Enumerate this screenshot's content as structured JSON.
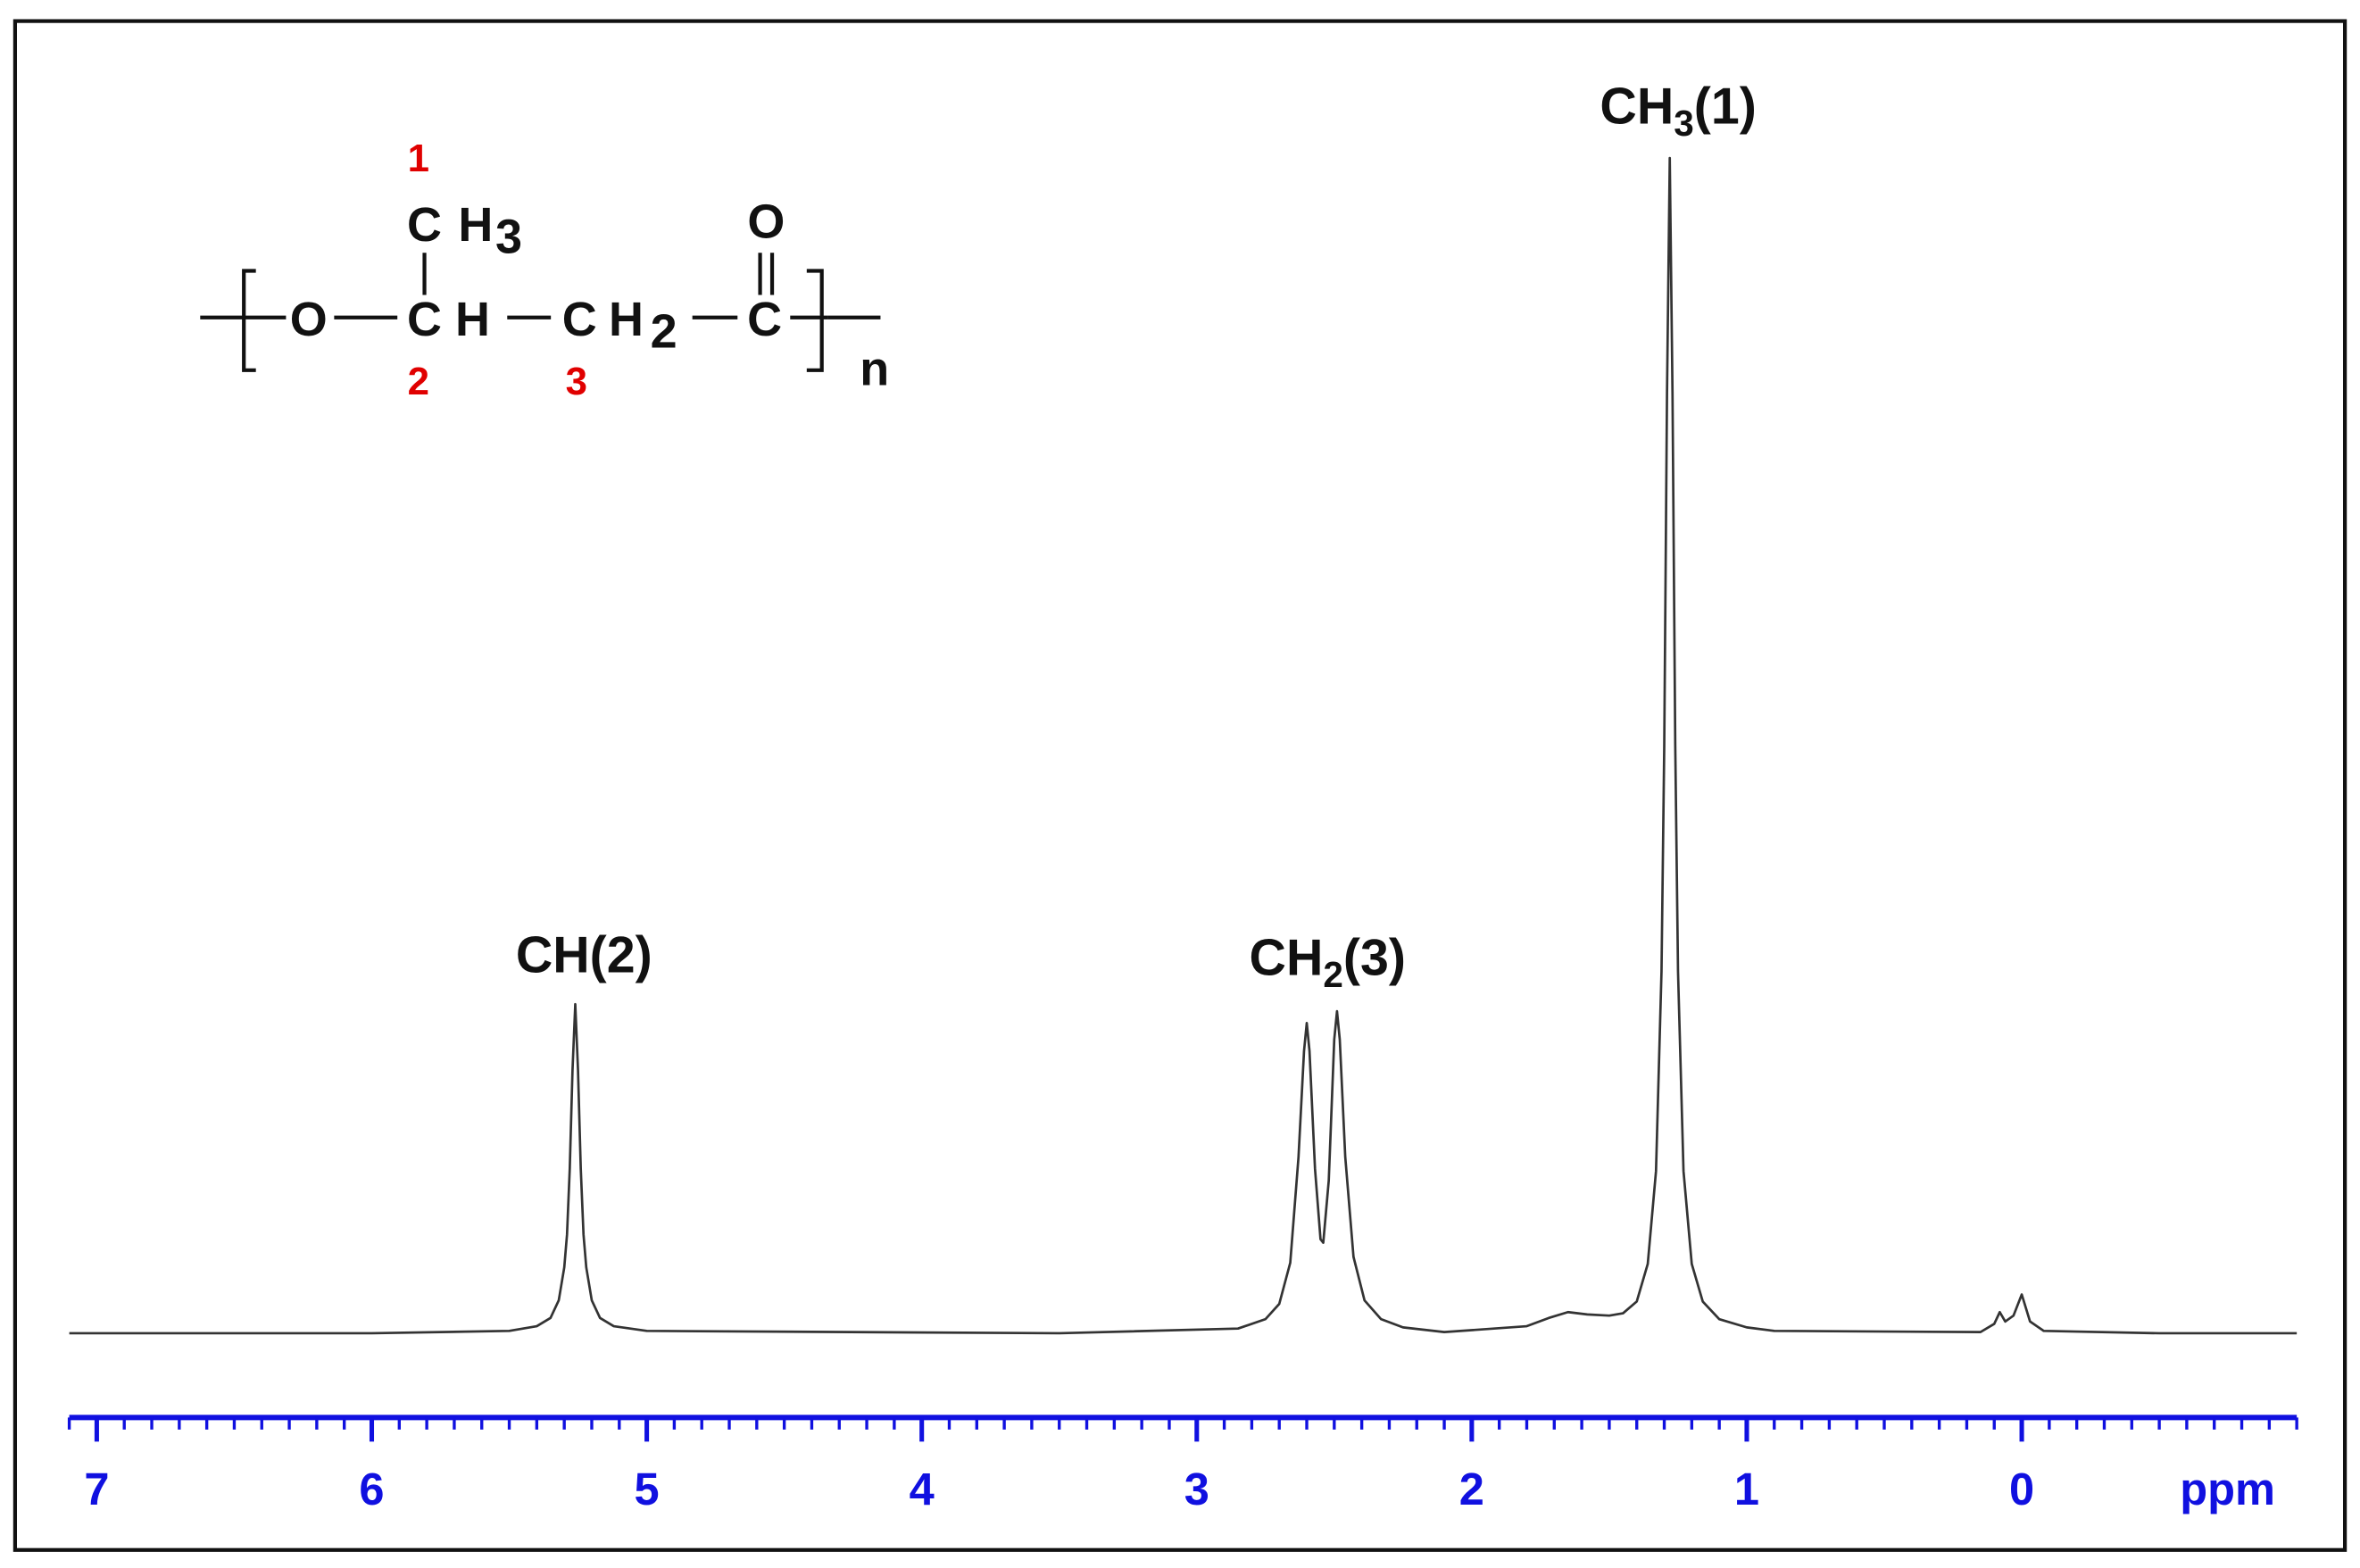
{
  "chart_data": {
    "type": "line",
    "x_label": "ppm",
    "color": "#333333",
    "axis_color": "#1010e0",
    "xlim": [
      7.1,
      -1.0
    ],
    "ylim": [
      0,
      100
    ],
    "xticks": [
      7,
      6,
      5,
      4,
      3,
      2,
      1,
      0
    ],
    "x": [
      7.1,
      6.0,
      5.5,
      5.4,
      5.35,
      5.32,
      5.3,
      5.29,
      5.28,
      5.27,
      5.26,
      5.25,
      5.24,
      5.23,
      5.22,
      5.2,
      5.17,
      5.12,
      5.0,
      3.5,
      2.85,
      2.75,
      2.7,
      2.66,
      2.63,
      2.61,
      2.6,
      2.59,
      2.57,
      2.55,
      2.54,
      2.52,
      2.5,
      2.49,
      2.48,
      2.46,
      2.43,
      2.39,
      2.33,
      2.25,
      2.1,
      1.8,
      1.72,
      1.65,
      1.58,
      1.5,
      1.45,
      1.4,
      1.36,
      1.33,
      1.31,
      1.3,
      1.29,
      1.28,
      1.27,
      1.26,
      1.25,
      1.23,
      1.2,
      1.16,
      1.1,
      1.0,
      0.9,
      0.15,
      0.1,
      0.08,
      0.06,
      0.03,
      0.0,
      -0.03,
      -0.08,
      -0.5,
      -1.0
    ],
    "values": [
      0,
      0,
      0.2,
      0.6,
      1.3,
      2.8,
      5.6,
      8.4,
      14,
      22.4,
      28,
      22.4,
      14,
      8.4,
      5.6,
      2.8,
      1.3,
      0.6,
      0.2,
      0,
      0.4,
      1.2,
      2.5,
      6,
      15,
      24,
      26.4,
      24,
      14,
      8,
      7.7,
      13,
      25,
      27.4,
      25,
      15,
      6.5,
      2.8,
      1.2,
      0.5,
      0.1,
      0.6,
      1.3,
      1.8,
      1.6,
      1.5,
      1.7,
      2.7,
      5.9,
      13.8,
      30.8,
      50,
      80,
      100,
      80,
      50,
      30.8,
      13.8,
      5.9,
      2.7,
      1.2,
      0.5,
      0.2,
      0.1,
      0.8,
      1.8,
      1.0,
      1.5,
      3.3,
      1.0,
      0.2,
      0,
      0
    ],
    "annotations": [
      {
        "text": "CH",
        "rest": "(2)"
      },
      {
        "text": "CH",
        "sub": "2",
        "rest": "(3)"
      },
      {
        "text": "CH",
        "sub": "3",
        "rest": "(1)"
      }
    ],
    "structure": {
      "chain": [
        "O",
        "C",
        "H",
        "C",
        "H",
        "2",
        "C"
      ],
      "side_group": [
        "C",
        "H",
        "3"
      ],
      "carbonyl_O": "O",
      "repeat": "n",
      "positions": [
        "1",
        "2",
        "3"
      ]
    }
  }
}
